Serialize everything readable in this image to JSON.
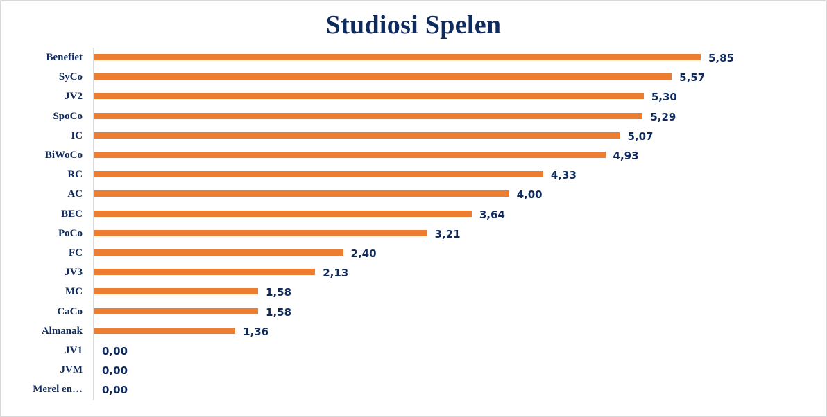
{
  "chart_data": {
    "type": "bar",
    "orientation": "horizontal",
    "title": "Studiosi Spelen",
    "xlabel": "",
    "ylabel": "",
    "categories": [
      "Benefiet",
      "SyCo",
      "JV2",
      "SpoCo",
      "IC",
      "BiWoCo",
      "RC",
      "AC",
      "BEC",
      "PoCo",
      "FC",
      "JV3",
      "MC",
      "CaCo",
      "Almanak",
      "JV1",
      "JVM",
      "Merel en…"
    ],
    "values": [
      5.85,
      5.57,
      5.3,
      5.29,
      5.07,
      4.93,
      4.33,
      4.0,
      3.64,
      3.21,
      2.4,
      2.13,
      1.58,
      1.58,
      1.36,
      0.0,
      0.0,
      0.0
    ],
    "value_labels": [
      "5,85",
      "5,57",
      "5,30",
      "5,29",
      "5,07",
      "4,93",
      "4,33",
      "4,00",
      "3,64",
      "3,21",
      "2,40",
      "2,13",
      "1,58",
      "1,58",
      "1,36",
      "0,00",
      "0,00",
      "0,00"
    ],
    "xlim": [
      0,
      6.5
    ],
    "grid": false,
    "legend": null,
    "data_labels": true,
    "bar_color": "#ed7d31",
    "text_color": "#0f2a5c"
  }
}
